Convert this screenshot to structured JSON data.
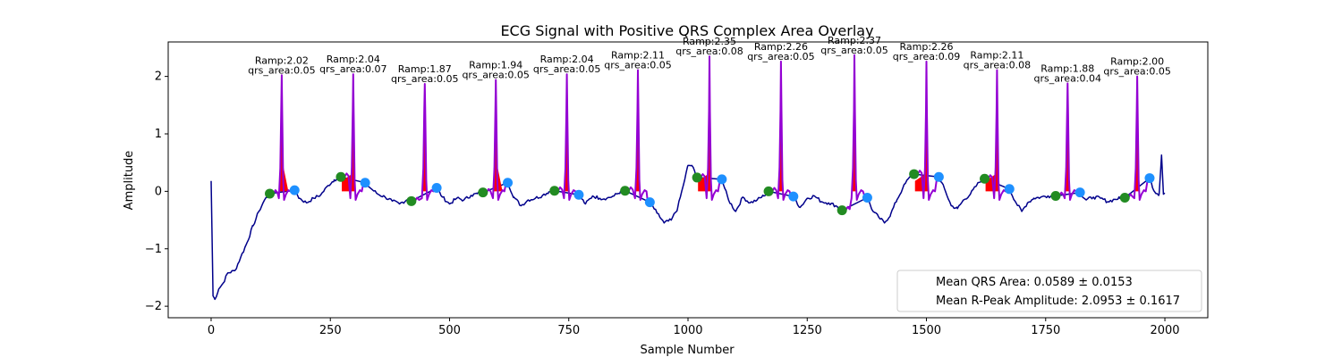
{
  "chart_data": {
    "type": "line",
    "title": "ECG Signal with Positive QRS Complex Area Overlay",
    "xlabel": "Sample Number",
    "ylabel": "Amplitude",
    "xlim": [
      -90,
      2090
    ],
    "ylim": [
      -2.2,
      2.6
    ],
    "xticks": [
      0,
      250,
      500,
      750,
      1000,
      1250,
      1500,
      1750,
      2000
    ],
    "yticks": [
      -2,
      -1,
      0,
      1,
      2
    ],
    "grid": false,
    "colors": {
      "ecg": "#00008b",
      "qrs_segment": "#9400d3",
      "qrs_area": "#ff0000",
      "q_onset": "#228b22",
      "s_offset": "#1e90ff"
    },
    "r_peaks": [
      {
        "x": 148,
        "amp": 2.02,
        "ramp_label": "Ramp:2.02",
        "area_label": "qrs_area:0.05",
        "onset": [
          123,
          -0.04
        ],
        "offset": [
          175,
          0.02
        ],
        "area_shape": "tri"
      },
      {
        "x": 298,
        "amp": 2.04,
        "ramp_label": "Ramp:2.04",
        "area_label": "qrs_area:0.07",
        "onset": [
          272,
          0.25
        ],
        "offset": [
          323,
          0.15
        ],
        "area_shape": "block"
      },
      {
        "x": 448,
        "amp": 1.87,
        "ramp_label": "Ramp:1.87",
        "area_label": "qrs_area:0.05",
        "onset": [
          420,
          -0.17
        ],
        "offset": [
          473,
          0.06
        ],
        "area_shape": "spike"
      },
      {
        "x": 597,
        "amp": 1.94,
        "ramp_label": "Ramp:1.94",
        "area_label": "qrs_area:0.05",
        "onset": [
          570,
          -0.02
        ],
        "offset": [
          622,
          0.15
        ],
        "area_shape": "tri"
      },
      {
        "x": 746,
        "amp": 2.04,
        "ramp_label": "Ramp:2.04",
        "area_label": "qrs_area:0.05",
        "onset": [
          720,
          0.01
        ],
        "offset": [
          771,
          -0.06
        ],
        "area_shape": "spike"
      },
      {
        "x": 895,
        "amp": 2.11,
        "ramp_label": "Ramp:2.11",
        "area_label": "qrs_area:0.05",
        "onset": [
          868,
          0.01
        ],
        "offset": [
          920,
          -0.19
        ],
        "area_shape": "spike"
      },
      {
        "x": 1045,
        "amp": 2.35,
        "ramp_label": "Ramp:2.35",
        "area_label": "qrs_area:0.08",
        "onset": [
          1019,
          0.24
        ],
        "offset": [
          1071,
          0.21
        ],
        "area_shape": "block"
      },
      {
        "x": 1195,
        "amp": 2.26,
        "ramp_label": "Ramp:2.26",
        "area_label": "qrs_area:0.05",
        "onset": [
          1169,
          0.0
        ],
        "offset": [
          1221,
          -0.09
        ],
        "area_shape": "spike"
      },
      {
        "x": 1349,
        "amp": 2.37,
        "ramp_label": "Ramp:2.37",
        "area_label": "qrs_area:0.05",
        "onset": [
          1323,
          -0.33
        ],
        "offset": [
          1376,
          -0.11
        ],
        "area_shape": "spike"
      },
      {
        "x": 1500,
        "amp": 2.26,
        "ramp_label": "Ramp:2.26",
        "area_label": "qrs_area:0.09",
        "onset": [
          1474,
          0.3
        ],
        "offset": [
          1526,
          0.25
        ],
        "area_shape": "block"
      },
      {
        "x": 1648,
        "amp": 2.11,
        "ramp_label": "Ramp:2.11",
        "area_label": "qrs_area:0.08",
        "onset": [
          1622,
          0.22
        ],
        "offset": [
          1674,
          0.04
        ],
        "area_shape": "block"
      },
      {
        "x": 1796,
        "amp": 1.88,
        "ramp_label": "Ramp:1.88",
        "area_label": "qrs_area:0.04",
        "onset": [
          1771,
          -0.08
        ],
        "offset": [
          1822,
          -0.02
        ],
        "area_shape": "spike"
      },
      {
        "x": 1942,
        "amp": 2.0,
        "ramp_label": "Ramp:2.00",
        "area_label": "qrs_area:0.05",
        "onset": [
          1916,
          -0.11
        ],
        "offset": [
          1968,
          0.23
        ],
        "area_shape": "spike"
      }
    ],
    "baseline": [
      [
        0,
        0.18
      ],
      [
        4,
        -1.82
      ],
      [
        8,
        -1.88
      ],
      [
        16,
        -1.7
      ],
      [
        25,
        -1.6
      ],
      [
        35,
        -1.42
      ],
      [
        50,
        -1.38
      ],
      [
        62,
        -1.15
      ],
      [
        75,
        -0.9
      ],
      [
        88,
        -0.6
      ],
      [
        100,
        -0.35
      ],
      [
        112,
        -0.15
      ],
      [
        123,
        -0.04
      ],
      [
        175,
        0.02
      ],
      [
        185,
        -0.12
      ],
      [
        200,
        -0.2
      ],
      [
        215,
        -0.12
      ],
      [
        230,
        -0.06
      ],
      [
        245,
        0.1
      ],
      [
        258,
        0.2
      ],
      [
        272,
        0.25
      ],
      [
        323,
        0.15
      ],
      [
        335,
        0.05
      ],
      [
        350,
        -0.05
      ],
      [
        365,
        -0.1
      ],
      [
        380,
        -0.17
      ],
      [
        395,
        -0.22
      ],
      [
        410,
        -0.15
      ],
      [
        420,
        -0.17
      ],
      [
        473,
        0.06
      ],
      [
        485,
        -0.1
      ],
      [
        500,
        -0.22
      ],
      [
        515,
        -0.12
      ],
      [
        530,
        -0.15
      ],
      [
        545,
        -0.07
      ],
      [
        558,
        -0.04
      ],
      [
        570,
        -0.02
      ],
      [
        622,
        0.15
      ],
      [
        635,
        -0.1
      ],
      [
        650,
        -0.25
      ],
      [
        665,
        -0.15
      ],
      [
        680,
        -0.12
      ],
      [
        695,
        -0.07
      ],
      [
        708,
        -0.01
      ],
      [
        720,
        0.01
      ],
      [
        771,
        -0.06
      ],
      [
        785,
        -0.22
      ],
      [
        800,
        -0.08
      ],
      [
        815,
        -0.12
      ],
      [
        830,
        -0.12
      ],
      [
        845,
        -0.08
      ],
      [
        858,
        -0.01
      ],
      [
        868,
        0.01
      ],
      [
        920,
        -0.19
      ],
      [
        935,
        -0.38
      ],
      [
        950,
        -0.55
      ],
      [
        965,
        -0.5
      ],
      [
        978,
        -0.3
      ],
      [
        990,
        0.1
      ],
      [
        1000,
        0.45
      ],
      [
        1008,
        0.45
      ],
      [
        1019,
        0.24
      ],
      [
        1071,
        0.21
      ],
      [
        1085,
        -0.15
      ],
      [
        1100,
        -0.35
      ],
      [
        1115,
        -0.1
      ],
      [
        1130,
        -0.2
      ],
      [
        1145,
        -0.15
      ],
      [
        1158,
        -0.08
      ],
      [
        1169,
        0.0
      ],
      [
        1221,
        -0.09
      ],
      [
        1235,
        -0.28
      ],
      [
        1250,
        -0.12
      ],
      [
        1265,
        -0.08
      ],
      [
        1280,
        -0.18
      ],
      [
        1295,
        -0.2
      ],
      [
        1310,
        -0.25
      ],
      [
        1323,
        -0.33
      ],
      [
        1376,
        -0.11
      ],
      [
        1388,
        -0.35
      ],
      [
        1400,
        -0.45
      ],
      [
        1412,
        -0.55
      ],
      [
        1425,
        -0.4
      ],
      [
        1438,
        -0.15
      ],
      [
        1450,
        0.05
      ],
      [
        1462,
        0.22
      ],
      [
        1474,
        0.3
      ],
      [
        1526,
        0.25
      ],
      [
        1540,
        0.0
      ],
      [
        1552,
        -0.25
      ],
      [
        1565,
        -0.3
      ],
      [
        1578,
        -0.15
      ],
      [
        1592,
        -0.05
      ],
      [
        1605,
        0.1
      ],
      [
        1615,
        0.2
      ],
      [
        1622,
        0.22
      ],
      [
        1674,
        0.04
      ],
      [
        1688,
        -0.2
      ],
      [
        1700,
        -0.35
      ],
      [
        1712,
        -0.2
      ],
      [
        1725,
        -0.12
      ],
      [
        1740,
        -0.1
      ],
      [
        1755,
        -0.08
      ],
      [
        1771,
        -0.08
      ],
      [
        1822,
        -0.02
      ],
      [
        1835,
        -0.15
      ],
      [
        1850,
        -0.1
      ],
      [
        1865,
        -0.12
      ],
      [
        1880,
        -0.18
      ],
      [
        1895,
        -0.14
      ],
      [
        1905,
        -0.12
      ],
      [
        1916,
        -0.11
      ],
      [
        1968,
        0.23
      ],
      [
        1978,
        0.0
      ],
      [
        1988,
        -0.05
      ],
      [
        1993,
        0.63
      ],
      [
        1997,
        -0.05
      ],
      [
        2000,
        -0.03
      ]
    ],
    "legend": {
      "placement": "lower right",
      "entries": [
        "Mean QRS Area: 0.0589 ± 0.0153",
        "Mean R-Peak Amplitude: 2.0953 ± 0.1617"
      ]
    }
  }
}
